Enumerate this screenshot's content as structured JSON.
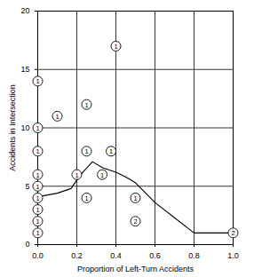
{
  "chart_data": {
    "type": "scatter",
    "x_label": "Proportion of Left-Turn Accidents",
    "y_label": "Accidents in Intersection",
    "xlim": [
      0,
      1
    ],
    "xticks": [
      {
        "value": 0,
        "label": "0.0"
      },
      {
        "value": 0.2,
        "label": "0.2"
      },
      {
        "value": 0.4,
        "label": "0.4"
      },
      {
        "value": 0.6,
        "label": "0.6"
      },
      {
        "value": 0.8,
        "label": "0.8"
      },
      {
        "value": 1,
        "label": "1.0"
      }
    ],
    "ylim": [
      0,
      20
    ],
    "yticks": [
      0,
      5,
      10,
      15,
      20
    ],
    "grid": true,
    "series": [
      {
        "type": "scatter",
        "marker": "circle",
        "color": "#000000",
        "x": [
          0,
          0,
          0,
          0,
          0,
          0,
          0,
          0,
          0,
          0.1,
          0.25,
          0.4,
          0.2,
          0.25,
          0.375,
          0.33,
          0.25,
          0.5,
          0.5,
          1.0
        ],
        "values": [
          1,
          2,
          3,
          4,
          5,
          6,
          8,
          10,
          14,
          11,
          12,
          17,
          6,
          8,
          8,
          6,
          4,
          4,
          2,
          1
        ],
        "counts": [
          1,
          1,
          1,
          1,
          1,
          1,
          1,
          1,
          1,
          1,
          1,
          1,
          1,
          1,
          1,
          1,
          1,
          1,
          2,
          2
        ]
      },
      {
        "type": "line",
        "line_style": "solid",
        "color": "#000000",
        "x": [
          0,
          0.1,
          0.17,
          0.22,
          0.28,
          0.33,
          0.4,
          0.45,
          0.5,
          0.6,
          0.7,
          0.8,
          1.0
        ],
        "values": [
          4.1,
          4.4,
          4.8,
          6.0,
          7.1,
          6.6,
          6.2,
          5.8,
          5.3,
          3.6,
          2.3,
          1.0,
          1.0
        ]
      }
    ]
  }
}
